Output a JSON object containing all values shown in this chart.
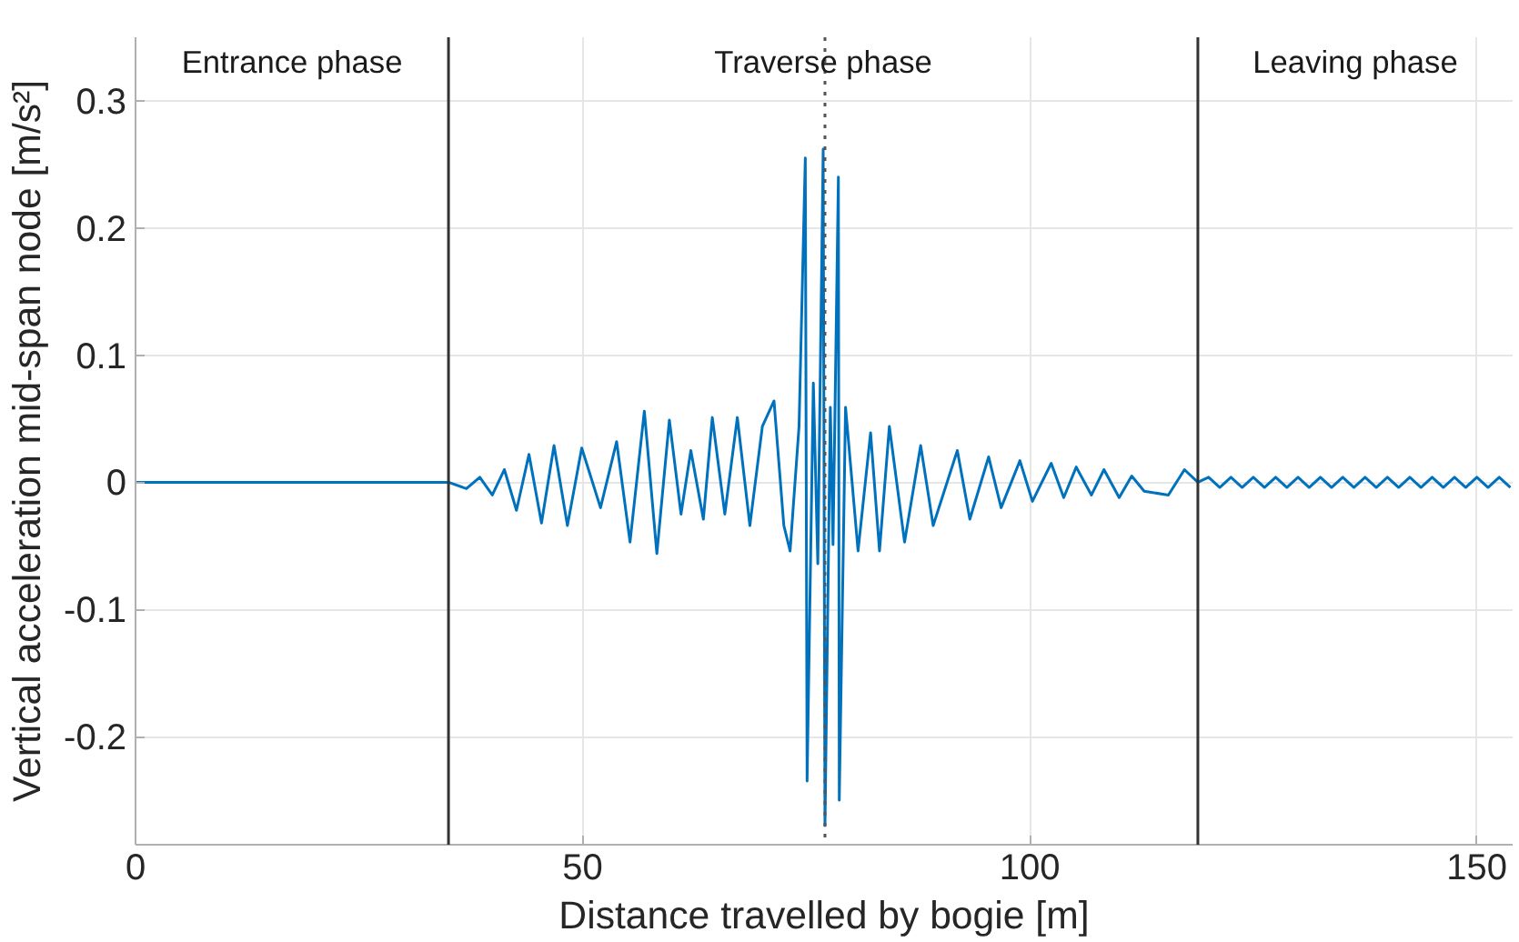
{
  "chart_data": {
    "type": "line",
    "xlabel": "Distance travelled by bogie [m]",
    "ylabel": "Vertical acceleration mid-span node [m/s²]",
    "xlim": [
      0,
      154
    ],
    "ylim": [
      -0.285,
      0.35
    ],
    "xticks": [
      0,
      50,
      100,
      150
    ],
    "yticks": [
      -0.2,
      -0.1,
      0,
      0.1,
      0.2,
      0.3
    ],
    "grid": true,
    "line_style": "solid",
    "series": [
      {
        "color": "#0072bd",
        "x": [
          0,
          35,
          37,
          38.5,
          39.9,
          41.25,
          42.6,
          44.0,
          45.4,
          46.8,
          48.3,
          49.9,
          52.0,
          53.8,
          55.3,
          56.9,
          58.3,
          59.7,
          61.0,
          62.1,
          63.5,
          64.5,
          65.9,
          67.3,
          68.7,
          70.1,
          71.4,
          72.5,
          73.2,
          74.2,
          74.9,
          75.1,
          75.8,
          76.3,
          76.9,
          77.1,
          77.7,
          78.0,
          78.6,
          78.7,
          79.4,
          80.8,
          82.2,
          83.2,
          84.3,
          86.0,
          87.8,
          89.2,
          91.9,
          93.3,
          95.4,
          96.8,
          98.9,
          100.3,
          102.4,
          103.8,
          105.2,
          106.9,
          108.3,
          110.0,
          111.4,
          112.8,
          115.5,
          117.3,
          118.8,
          120,
          121.25,
          122.5,
          123.75,
          125,
          126.25,
          127.5,
          128.75,
          130,
          131.25,
          132.5,
          133.75,
          135,
          136.25,
          137.5,
          138.75,
          140,
          141.25,
          142.5,
          143.75,
          145,
          146.25,
          147.5,
          148.75,
          150,
          151.25,
          152.5,
          153.75
        ],
        "values": [
          0,
          0,
          -0.005,
          0.004,
          -0.01,
          0.01,
          -0.022,
          0.022,
          -0.032,
          0.029,
          -0.034,
          0.027,
          -0.02,
          0.032,
          -0.047,
          0.056,
          -0.056,
          0.049,
          -0.025,
          0.025,
          -0.029,
          0.051,
          -0.025,
          0.051,
          -0.034,
          0.044,
          0.064,
          -0.034,
          -0.054,
          0.044,
          0.255,
          -0.235,
          0.078,
          -0.064,
          0.262,
          -0.27,
          0.059,
          -0.049,
          0.24,
          -0.25,
          0.059,
          -0.054,
          0.039,
          -0.054,
          0.044,
          -0.047,
          0.029,
          -0.034,
          0.025,
          -0.029,
          0.02,
          -0.02,
          0.017,
          -0.015,
          0.015,
          -0.012,
          0.012,
          -0.01,
          0.01,
          -0.012,
          0.005,
          -0.007,
          -0.01,
          0.01,
          0,
          0.004,
          -0.004,
          0.004,
          -0.004,
          0.004,
          -0.004,
          0.004,
          -0.004,
          0.004,
          -0.004,
          0.004,
          -0.004,
          0.004,
          -0.004,
          0.004,
          -0.004,
          0.004,
          -0.004,
          0.004,
          -0.004,
          0.004,
          -0.004,
          0.004,
          -0.004,
          0.004,
          -0.004,
          0.004,
          -0.004
        ]
      }
    ],
    "ref_lines": [
      {
        "axis": "x",
        "value": 35,
        "color": "#333333",
        "line_style": "solid"
      },
      {
        "axis": "x",
        "value": 118.8,
        "color": "#333333",
        "line_style": "solid"
      },
      {
        "axis": "x",
        "value": 77.1,
        "color": "#555555",
        "line_style": "dotted"
      }
    ],
    "annotations": [
      "Entrance phase",
      "Traverse phase",
      "Leaving phase"
    ]
  }
}
